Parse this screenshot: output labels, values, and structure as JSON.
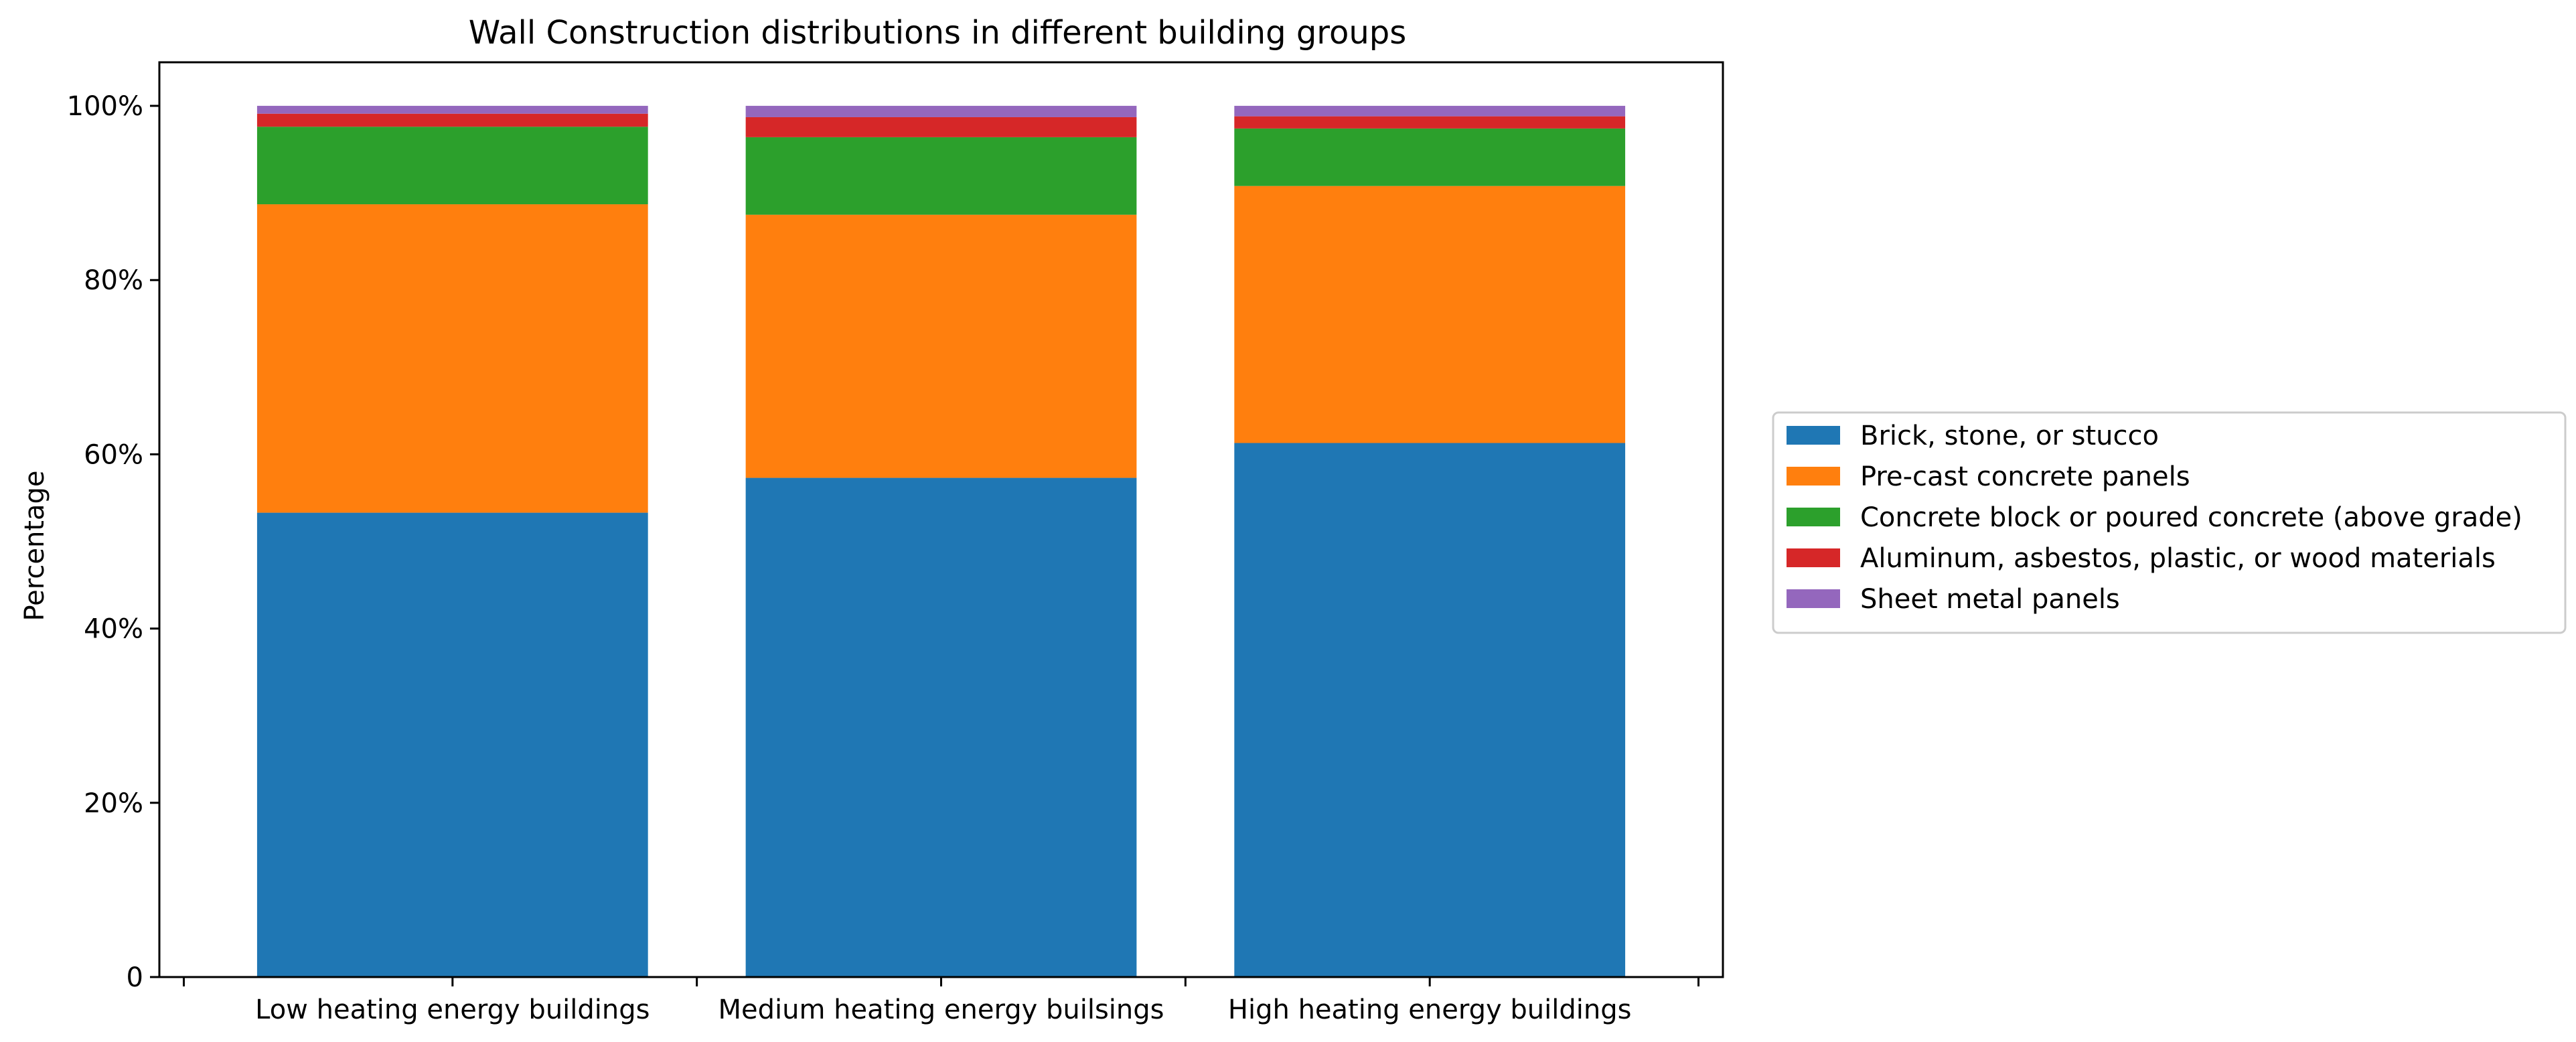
{
  "chart_data": {
    "type": "bar",
    "stacked": true,
    "title": "Wall Construction distributions in different building groups",
    "xlabel": "",
    "ylabel": "Percentage",
    "ylim": [
      0,
      1.05
    ],
    "yticks": [
      0,
      0.2,
      0.4,
      0.6,
      0.8,
      1.0
    ],
    "ytick_labels": [
      "0",
      "20%",
      "40%",
      "60%",
      "80%",
      "100%"
    ],
    "categories": [
      "Low heating energy buildings",
      "Medium heating energy builsings",
      "High heating energy buildings"
    ],
    "series": [
      {
        "name": "Brick, stone, or stucco",
        "color": "#1f77b4",
        "values": [
          0.533,
          0.573,
          0.613
        ]
      },
      {
        "name": "Pre-cast concrete panels",
        "color": "#ff7f0e",
        "values": [
          0.354,
          0.302,
          0.295
        ]
      },
      {
        "name": "Concrete block or poured concrete (above grade)",
        "color": "#2ca02c",
        "values": [
          0.089,
          0.089,
          0.066
        ]
      },
      {
        "name": "Aluminum, asbestos, plastic, or wood materials",
        "color": "#d62728",
        "values": [
          0.015,
          0.023,
          0.014
        ]
      },
      {
        "name": "Sheet metal panels",
        "color": "#9467bd",
        "values": [
          0.009,
          0.013,
          0.012
        ]
      }
    ],
    "legend_position": "right",
    "grid": false
  }
}
